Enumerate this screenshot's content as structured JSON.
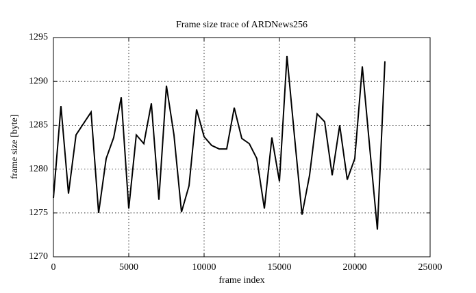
{
  "chart_data": {
    "type": "line",
    "title": "Frame size trace of ARDNews256",
    "xlabel": "frame index",
    "ylabel": "frame size [byte]",
    "x": [
      0,
      500,
      1000,
      1500,
      2500,
      3000,
      3500,
      4000,
      4500,
      5000,
      5500,
      6000,
      6500,
      7000,
      7500,
      8000,
      8500,
      9000,
      9500,
      10000,
      10500,
      11000,
      11500,
      12000,
      12500,
      13000,
      13500,
      14000,
      14500,
      15000,
      15500,
      16000,
      16500,
      17000,
      17500,
      18000,
      18500,
      19000,
      19500,
      20000,
      20500,
      21000,
      21500,
      22000
    ],
    "values": [
      1276.7,
      1287.2,
      1277.2,
      1283.9,
      1286.5,
      1275.0,
      1281.2,
      1283.6,
      1288.2,
      1275.5,
      1283.9,
      1282.9,
      1287.5,
      1276.5,
      1289.5,
      1283.9,
      1275.1,
      1278.1,
      1286.8,
      1283.7,
      1282.7,
      1282.3,
      1282.3,
      1287.0,
      1283.5,
      1282.9,
      1281.2,
      1275.5,
      1283.6,
      1278.6,
      1292.9,
      1283.7,
      1274.8,
      1279.3,
      1286.3,
      1285.4,
      1279.3,
      1285.0,
      1278.8,
      1281.2,
      1291.7,
      1282.3,
      1273.1,
      1292.3
    ],
    "color": "#000000",
    "xlim": [
      0,
      25000
    ],
    "xticks": [
      0,
      5000,
      10000,
      15000,
      20000,
      25000
    ],
    "ylim": [
      1270,
      1295
    ],
    "yticks": [
      1270,
      1275,
      1280,
      1285,
      1290,
      1295
    ],
    "grid": true
  }
}
